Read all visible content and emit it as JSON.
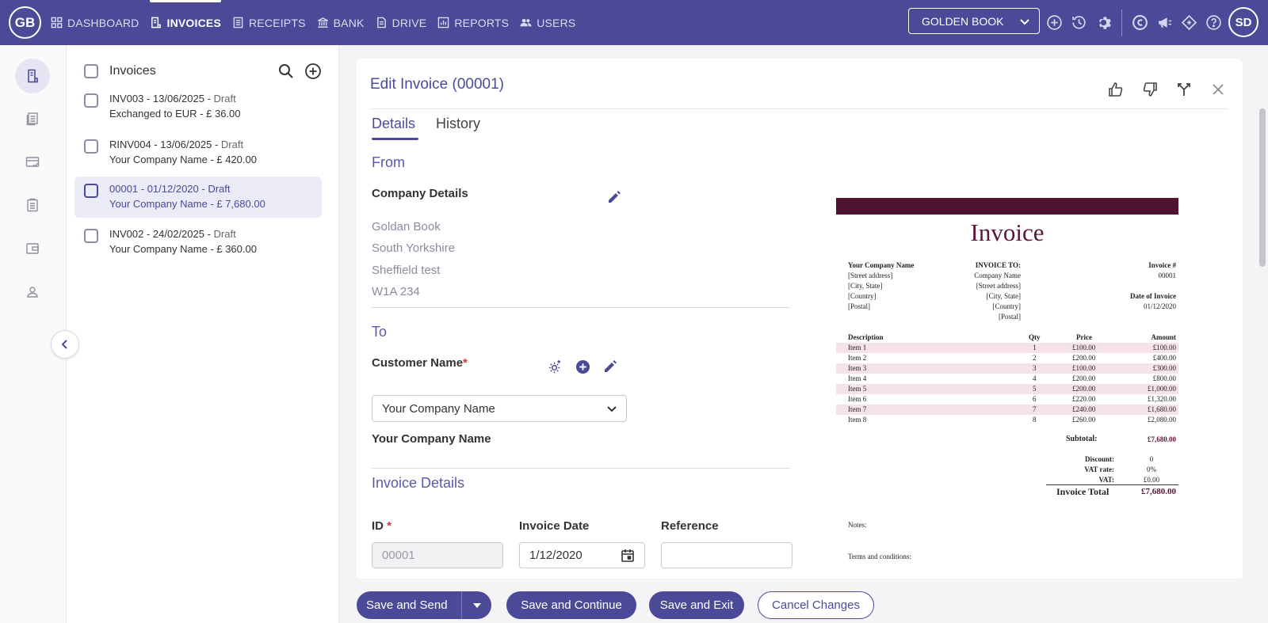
{
  "app": {
    "logo": "GB",
    "avatar": "SD",
    "company": "GOLDEN BOOK"
  },
  "nav": [
    {
      "label": "DASHBOARD",
      "icon": "grid-icon"
    },
    {
      "label": "INVOICES",
      "icon": "invoice-icon"
    },
    {
      "label": "RECEIPTS",
      "icon": "receipt-icon"
    },
    {
      "label": "BANK",
      "icon": "bank-icon"
    },
    {
      "label": "DRIVE",
      "icon": "drive-icon"
    },
    {
      "label": "REPORTS",
      "icon": "reports-icon"
    },
    {
      "label": "USERS",
      "icon": "users-icon"
    }
  ],
  "list": {
    "title": "Invoices",
    "items": [
      {
        "title": "INV003 - 13/06/2025 - ",
        "status": "Draft",
        "sub": "Exchanged to EUR - £ 36.00"
      },
      {
        "title": "RINV004 - 13/06/2025 - ",
        "status": "Draft",
        "sub": "Your Company Name - £ 420.00"
      },
      {
        "title": "00001 - 01/12/2020 - ",
        "status": "Draft",
        "sub": "Your Company Name - £ 7,680.00"
      },
      {
        "title": "INV002 - 24/02/2025 - ",
        "status": "Draft",
        "sub": "Your Company Name - £ 360.00"
      }
    ]
  },
  "editor": {
    "title": "Edit Invoice (00001)",
    "tabs": [
      "Details",
      "History"
    ],
    "from_title": "From",
    "company_details_label": "Company Details",
    "address": [
      "Goldan Book",
      "South Yorkshire",
      "Sheffield test",
      "W1A 234"
    ],
    "to_title": "To",
    "customer_label": "Customer Name",
    "required_mark": "*",
    "customer_value": "Your Company Name",
    "customer_display": "Your Company Name",
    "invoice_details_title": "Invoice Details",
    "id_label": "ID",
    "id_value": "00001",
    "date_label": "Invoice Date",
    "date_value": "1/12/2020",
    "reference_label": "Reference",
    "reference_value": ""
  },
  "preview": {
    "title": "Invoice",
    "from": [
      "Your Company Name",
      "[Street address]",
      "[City, State]",
      "[Country]",
      "[Postal]"
    ],
    "to_heading": "INVOICE TO:",
    "to": [
      "Company Name",
      "[Street address]",
      "[City, State]",
      "[Country]",
      "[Postal]"
    ],
    "number_label": "Invoice #",
    "number": "00001",
    "date_label": "Date of Invoice",
    "date": "01/12/2020",
    "columns": [
      "Description",
      "Qty",
      "Price",
      "Amount"
    ],
    "rows": [
      [
        "Item 1",
        "1",
        "£100.00",
        "£100.00"
      ],
      [
        "Item 2",
        "2",
        "£200.00",
        "£400.00"
      ],
      [
        "Item 3",
        "3",
        "£100.00",
        "£300.00"
      ],
      [
        "Item 4",
        "4",
        "£200.00",
        "£800.00"
      ],
      [
        "Item 5",
        "5",
        "£200.00",
        "£1,000.00"
      ],
      [
        "Item 6",
        "6",
        "£220.00",
        "£1,320.00"
      ],
      [
        "Item 7",
        "7",
        "£240.00",
        "£1,680.00"
      ],
      [
        "Item 8",
        "8",
        "£260.00",
        "£2,080.00"
      ]
    ],
    "subtotal_label": "Subtotal:",
    "subtotal": "£7,680.00",
    "discount_label": "Discount:",
    "discount": "0",
    "vat_rate_label": "VAT rate:",
    "vat_rate": "0%",
    "vat_label": "VAT:",
    "vat": "£0.00",
    "total_label": "Invoice Total",
    "total": "£7,680.00",
    "notes_label": "Notes:",
    "terms_label": "Terms and conditions:"
  },
  "actions": {
    "save_send": "Save and Send",
    "save_continue": "Save and Continue",
    "save_exit": "Save and Exit",
    "cancel": "Cancel Changes"
  },
  "colors": {
    "primary": "#4b4a98",
    "invoice_accent": "#4d1330",
    "row_shade": "#f6e3ea"
  }
}
